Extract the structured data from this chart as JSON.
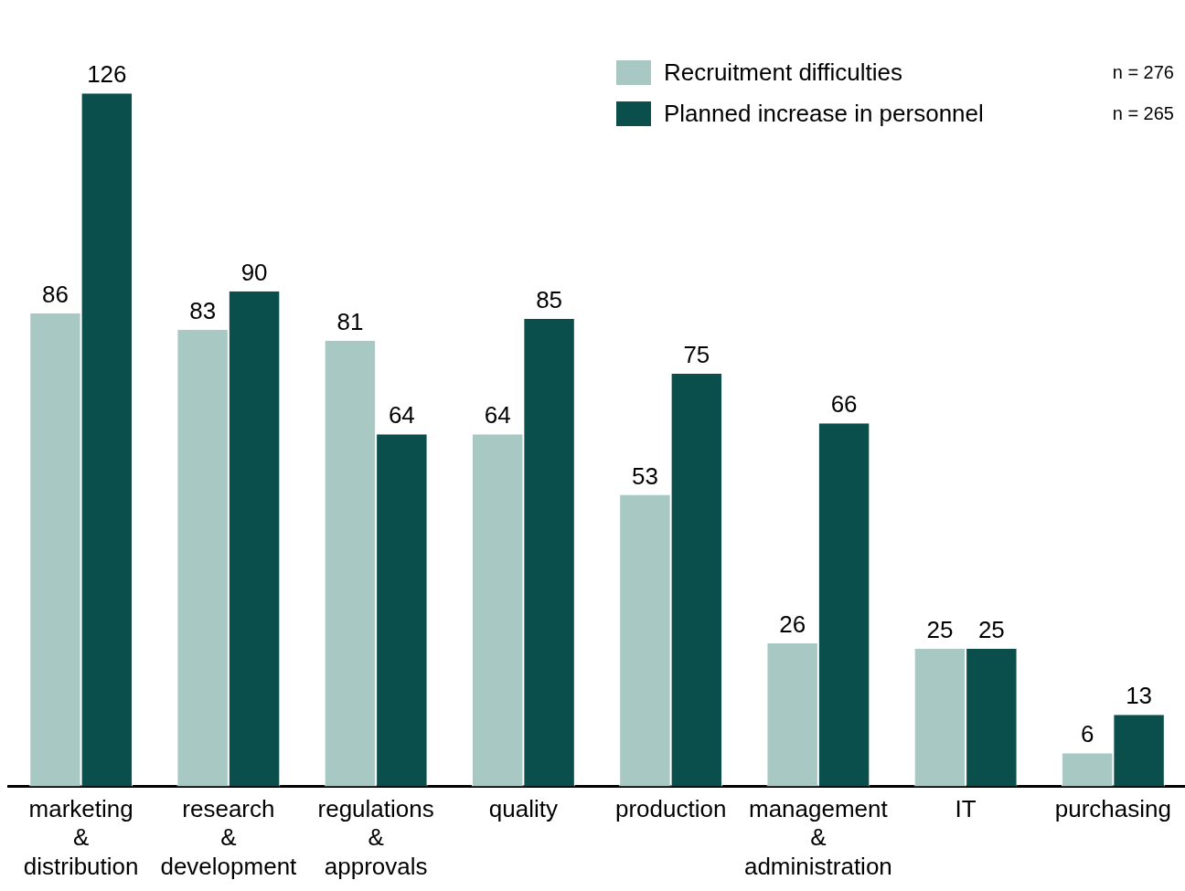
{
  "chart_data": {
    "type": "bar",
    "categories": [
      "marketing & distribution",
      "research & development",
      "regulations & approvals",
      "quality",
      "production",
      "management & administration",
      "IT",
      "purchasing"
    ],
    "series": [
      {
        "name": "Recruitment difficulties",
        "color": "#a8c8c4",
        "values": [
          86,
          83,
          81,
          64,
          53,
          26,
          25,
          6
        ]
      },
      {
        "name": "Planned increase in personnel",
        "color": "#0b4f4c",
        "values": [
          126,
          90,
          64,
          85,
          75,
          66,
          25,
          13
        ]
      }
    ],
    "data_labels": true,
    "legend": "top right",
    "grid": false,
    "tick_labels": "x",
    "annotations": [
      "n = 276",
      "n = 265"
    ]
  }
}
